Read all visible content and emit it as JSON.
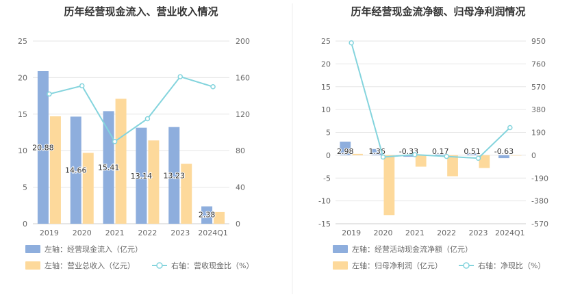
{
  "chart_data": [
    {
      "type": "bar",
      "title": "历年经营现金流入、营业收入情况",
      "categories": [
        "2019",
        "2020",
        "2021",
        "2022",
        "2023",
        "2024Q1"
      ],
      "y_left": {
        "ticks": [
          "0",
          "5",
          "10",
          "15",
          "20",
          "25"
        ],
        "range": [
          0,
          25
        ]
      },
      "y_right": {
        "ticks": [
          "0",
          "40",
          "80",
          "120",
          "160",
          "200"
        ],
        "range": [
          0,
          200
        ]
      },
      "series": [
        {
          "name": "左轴：经营现金流入（亿元）",
          "axis": "left",
          "kind": "bar",
          "color": "#8eaedd",
          "values": [
            20.88,
            14.66,
            15.41,
            13.14,
            13.23,
            2.38
          ],
          "labels": [
            "20.88",
            "14.66",
            "15.41",
            "13.14",
            "13.23",
            "2.38"
          ]
        },
        {
          "name": "左轴：营业总收入（亿元）",
          "axis": "left",
          "kind": "bar",
          "color": "#fdd99b",
          "values": [
            14.7,
            9.7,
            17.1,
            11.4,
            8.2,
            1.6
          ]
        },
        {
          "name": "右轴：营收现金比（%）",
          "axis": "right",
          "kind": "line",
          "color": "#84d4dd",
          "values": [
            142,
            151,
            90,
            115,
            161,
            150
          ]
        }
      ],
      "grid": true,
      "legend": "bottom"
    },
    {
      "type": "bar",
      "title": "历年经营现金流净额、归母净利润情况",
      "categories": [
        "2019",
        "2020",
        "2021",
        "2022",
        "2023",
        "2024Q1"
      ],
      "y_left": {
        "ticks": [
          "-15",
          "-10",
          "-5",
          "0",
          "5",
          "10",
          "15",
          "20",
          "25"
        ],
        "range": [
          -15,
          25
        ]
      },
      "y_right": {
        "ticks": [
          "-570",
          "-380",
          "-190",
          "0",
          "190",
          "380",
          "570",
          "760",
          "950"
        ],
        "range": [
          -570,
          950
        ]
      },
      "series": [
        {
          "name": "左轴：经营活动现金流净额（亿元）",
          "axis": "left",
          "kind": "bar",
          "color": "#8eaedd",
          "values": [
            2.98,
            1.36,
            -0.33,
            0.17,
            0.51,
            -0.63
          ],
          "labels": [
            "2.98",
            "1.36",
            "-0.33",
            "0.17",
            "0.51",
            "-0.63"
          ]
        },
        {
          "name": "左轴：归母净利润（亿元）",
          "axis": "left",
          "kind": "bar",
          "color": "#fdd99b",
          "values": [
            0.3,
            -13.1,
            -2.5,
            -4.6,
            -2.8,
            0.0
          ]
        },
        {
          "name": "右轴：净现比（%）",
          "axis": "right",
          "kind": "line",
          "color": "#84d4dd",
          "values": [
            935,
            -15,
            5,
            -10,
            -25,
            230
          ]
        }
      ],
      "grid": true,
      "legend": "bottom"
    }
  ]
}
